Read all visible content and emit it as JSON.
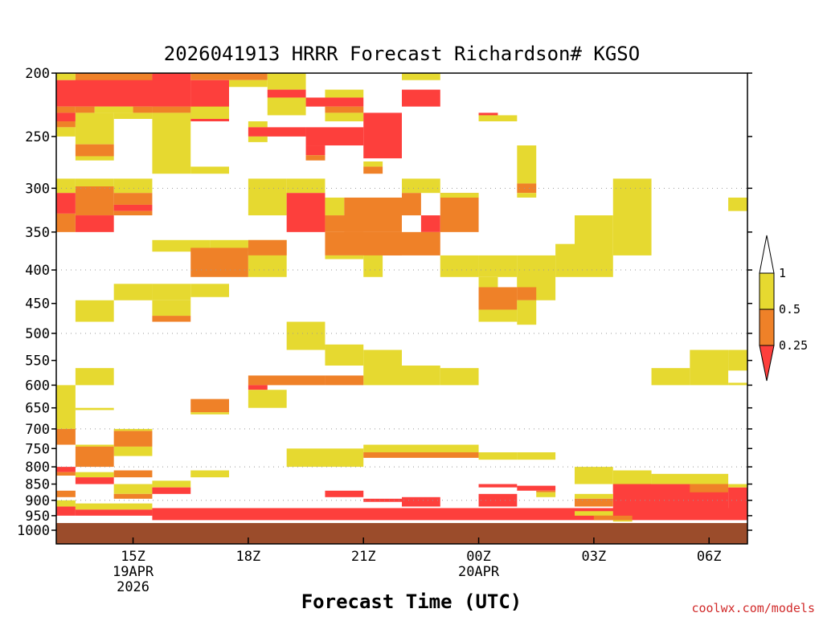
{
  "chart_data": {
    "type": "heatmap",
    "title": "2026041913 HRRR Forecast Richardson# KGSO",
    "xlabel": "Forecast Time (UTC)",
    "ylabel": "",
    "credit": "coolwx.com/models",
    "y_scale": "log (pressure, hPa), inverted",
    "ylim": [
      1000,
      200
    ],
    "y_ticks": [
      200,
      250,
      300,
      350,
      400,
      450,
      500,
      550,
      600,
      650,
      700,
      750,
      800,
      850,
      900,
      950,
      1000
    ],
    "y_gridlines": [
      300,
      400,
      500,
      700,
      800,
      900
    ],
    "x_hours_range": [
      13,
      31
    ],
    "x_ticks": [
      {
        "hour": 15,
        "lines": [
          "15Z",
          "19APR",
          "2026"
        ]
      },
      {
        "hour": 18,
        "lines": [
          "18Z"
        ]
      },
      {
        "hour": 21,
        "lines": [
          "21Z"
        ]
      },
      {
        "hour": 24,
        "lines": [
          "00Z",
          "20APR"
        ]
      },
      {
        "hour": 27,
        "lines": [
          "03Z"
        ]
      },
      {
        "hour": 30,
        "lines": [
          "06Z"
        ]
      }
    ],
    "colorbar": {
      "labels": [
        "1",
        "0.5",
        "0.25"
      ],
      "bins": [
        {
          "range": "0.5-1",
          "color": "#e6d930"
        },
        {
          "range": "0.25-0.5",
          "color": "#ef8128"
        },
        {
          "range": "<0.25",
          "color": "#fd3f3c"
        }
      ]
    },
    "colors": {
      "Y": "#e6d930",
      "O": "#ef8128",
      "R": "#fd3f3c",
      "G": "#9b4c2b"
    },
    "surface_level_hPa": 975,
    "cells": [
      [
        "Y",
        13,
        13.5,
        200,
        205
      ],
      [
        "O",
        13.5,
        15.5,
        200,
        212
      ],
      [
        "R",
        15.5,
        16.5,
        200,
        225
      ],
      [
        "O",
        16.5,
        17.5,
        200,
        205
      ],
      [
        "O",
        17.5,
        18.5,
        200,
        205
      ],
      [
        "Y",
        18.5,
        19.5,
        200,
        212
      ],
      [
        "Y",
        20,
        21,
        212,
        218
      ],
      [
        "Y",
        22,
        23,
        200,
        205
      ],
      [
        "R",
        13,
        16.5,
        205,
        225
      ],
      [
        "R",
        16.5,
        17.5,
        205,
        237
      ],
      [
        "Y",
        17.5,
        18.5,
        205,
        210
      ],
      [
        "R",
        18.5,
        19.5,
        212,
        218
      ],
      [
        "R",
        19.5,
        21,
        218,
        225
      ],
      [
        "R",
        22,
        23,
        212,
        225
      ],
      [
        "O",
        13,
        13.5,
        225,
        230
      ],
      [
        "O",
        13.5,
        14,
        225,
        230
      ],
      [
        "Y",
        14,
        15,
        225,
        230
      ],
      [
        "O",
        15,
        15.5,
        225,
        230
      ],
      [
        "O",
        15.5,
        16.5,
        225,
        230
      ],
      [
        "Y",
        16.5,
        17.5,
        225,
        235
      ],
      [
        "Y",
        18.5,
        19.5,
        218,
        232
      ],
      [
        "O",
        20,
        21,
        225,
        230
      ],
      [
        "Y",
        20,
        21,
        230,
        237
      ],
      [
        "R",
        21,
        22,
        230,
        270
      ],
      [
        "R",
        24,
        24.5,
        230,
        232
      ],
      [
        "Y",
        24,
        25,
        232,
        237
      ],
      [
        "R",
        13,
        13.5,
        230,
        237
      ],
      [
        "O",
        13,
        13.5,
        237,
        242
      ],
      [
        "Y",
        13,
        13.5,
        242,
        250
      ],
      [
        "Y",
        13.5,
        14.5,
        230,
        257
      ],
      [
        "O",
        13.5,
        14.5,
        257,
        268
      ],
      [
        "Y",
        13.5,
        14.5,
        268,
        272
      ],
      [
        "Y",
        14.5,
        15.5,
        230,
        235
      ],
      [
        "Y",
        15.5,
        16.5,
        230,
        285
      ],
      [
        "Y",
        16.5,
        17.5,
        278,
        285
      ],
      [
        "Y",
        18,
        18.5,
        237,
        242
      ],
      [
        "R",
        18,
        19.5,
        242,
        250
      ],
      [
        "Y",
        18,
        18.5,
        250,
        255
      ],
      [
        "R",
        19.5,
        21,
        242,
        258
      ],
      [
        "R",
        19.5,
        20,
        258,
        267
      ],
      [
        "O",
        19.5,
        20,
        267,
        272
      ],
      [
        "Y",
        21,
        21.5,
        273,
        278
      ],
      [
        "O",
        21,
        21.5,
        278,
        285
      ],
      [
        "Y",
        25,
        25.5,
        258,
        295
      ],
      [
        "O",
        25,
        25.5,
        295,
        305
      ],
      [
        "Y",
        25,
        25.5,
        305,
        310
      ],
      [
        "Y",
        13,
        13.5,
        290,
        305
      ],
      [
        "Y",
        13.5,
        14.5,
        290,
        298
      ],
      [
        "O",
        13.5,
        14.5,
        298,
        330
      ],
      [
        "R",
        13.5,
        14.5,
        330,
        350
      ],
      [
        "Y",
        14.5,
        15.5,
        290,
        305
      ],
      [
        "O",
        14.5,
        15.5,
        305,
        318
      ],
      [
        "R",
        14.5,
        15.5,
        318,
        325
      ],
      [
        "O",
        14.5,
        15.5,
        325,
        330
      ],
      [
        "R",
        13,
        13.5,
        305,
        328
      ],
      [
        "O",
        13,
        13.5,
        328,
        350
      ],
      [
        "Y",
        18,
        19,
        290,
        330
      ],
      [
        "Y",
        19,
        20,
        290,
        305
      ],
      [
        "R",
        19,
        20,
        305,
        350
      ],
      [
        "Y",
        20,
        20.5,
        310,
        330
      ],
      [
        "O",
        20,
        21,
        330,
        350
      ],
      [
        "O",
        20.5,
        22,
        310,
        350
      ],
      [
        "Y",
        22,
        23,
        290,
        305
      ],
      [
        "O",
        22,
        22.5,
        305,
        330
      ],
      [
        "R",
        22.5,
        23,
        330,
        350
      ],
      [
        "O",
        23,
        24,
        305,
        350
      ],
      [
        "Y",
        23,
        24,
        305,
        310
      ],
      [
        "Y",
        27.5,
        28.5,
        290,
        380
      ],
      [
        "Y",
        26.5,
        27.5,
        330,
        410
      ],
      [
        "Y",
        30.5,
        31,
        310,
        325
      ],
      [
        "Y",
        15.5,
        17,
        360,
        375
      ],
      [
        "Y",
        17,
        18,
        360,
        375
      ],
      [
        "Y",
        18,
        19,
        360,
        380
      ],
      [
        "O",
        18,
        19,
        360,
        380
      ],
      [
        "O",
        16.5,
        18,
        370,
        410
      ],
      [
        "Y",
        18,
        19,
        380,
        410
      ],
      [
        "O",
        20,
        22,
        350,
        380
      ],
      [
        "Y",
        20,
        21,
        380,
        385
      ],
      [
        "O",
        21,
        23,
        350,
        380
      ],
      [
        "Y",
        21,
        21.5,
        380,
        410
      ],
      [
        "Y",
        23,
        24,
        380,
        410
      ],
      [
        "Y",
        24,
        25,
        380,
        410
      ],
      [
        "Y",
        25,
        26,
        380,
        445
      ],
      [
        "Y",
        26,
        26.5,
        365,
        410
      ],
      [
        "Y",
        24,
        24.5,
        410,
        425
      ],
      [
        "O",
        24,
        25,
        425,
        460
      ],
      [
        "Y",
        24,
        25,
        460,
        480
      ],
      [
        "Y",
        25,
        25.5,
        410,
        425
      ],
      [
        "O",
        25,
        25.5,
        425,
        445
      ],
      [
        "Y",
        25,
        25.5,
        445,
        485
      ],
      [
        "Y",
        14.5,
        15.5,
        420,
        445
      ],
      [
        "Y",
        15.5,
        16.5,
        420,
        445
      ],
      [
        "Y",
        16.5,
        17.5,
        420,
        440
      ],
      [
        "Y",
        13.5,
        14.5,
        445,
        480
      ],
      [
        "Y",
        15.5,
        16.5,
        445,
        470
      ],
      [
        "O",
        15.5,
        16.5,
        470,
        480
      ],
      [
        "Y",
        19,
        20,
        480,
        530
      ],
      [
        "Y",
        20,
        21,
        520,
        560
      ],
      [
        "Y",
        21,
        22,
        530,
        600
      ],
      [
        "Y",
        22,
        23,
        560,
        600
      ],
      [
        "Y",
        23,
        24,
        565,
        600
      ],
      [
        "O",
        18,
        20,
        580,
        600
      ],
      [
        "O",
        20,
        21,
        580,
        600
      ],
      [
        "R",
        18,
        18.5,
        600,
        610
      ],
      [
        "Y",
        18,
        19,
        610,
        650
      ],
      [
        "Y",
        13.5,
        14.5,
        565,
        600
      ],
      [
        "Y",
        13,
        13.5,
        600,
        700
      ],
      [
        "O",
        13,
        13.5,
        700,
        740
      ],
      [
        "Y",
        13.5,
        14.5,
        650,
        655
      ],
      [
        "Y",
        14.5,
        15.5,
        700,
        705
      ],
      [
        "O",
        14.5,
        15.5,
        705,
        745
      ],
      [
        "Y",
        14.5,
        15.5,
        745,
        770
      ],
      [
        "O",
        16.5,
        17.5,
        630,
        660
      ],
      [
        "Y",
        16.5,
        17.5,
        660,
        665
      ],
      [
        "Y",
        28.5,
        29.5,
        565,
        600
      ],
      [
        "Y",
        29.5,
        30.5,
        530,
        600
      ],
      [
        "Y",
        30.5,
        31,
        530,
        570
      ],
      [
        "Y",
        30.5,
        31,
        595,
        600
      ],
      [
        "Y",
        13.5,
        14.5,
        740,
        745
      ],
      [
        "O",
        13.5,
        14.5,
        745,
        800
      ],
      [
        "Y",
        19,
        21,
        750,
        800
      ],
      [
        "Y",
        21,
        24,
        740,
        760
      ],
      [
        "O",
        21,
        24,
        760,
        775
      ],
      [
        "Y",
        24,
        25,
        760,
        780
      ],
      [
        "Y",
        25,
        26,
        760,
        780
      ],
      [
        "R",
        13,
        13.5,
        800,
        815
      ],
      [
        "O",
        13,
        13.5,
        815,
        825
      ],
      [
        "Y",
        13.5,
        14.5,
        815,
        830
      ],
      [
        "R",
        13.5,
        14.5,
        830,
        850
      ],
      [
        "O",
        14.5,
        15.5,
        810,
        830
      ],
      [
        "Y",
        16.5,
        17.5,
        810,
        830
      ],
      [
        "Y",
        14.5,
        15.5,
        850,
        880
      ],
      [
        "O",
        14.5,
        15.5,
        880,
        895
      ],
      [
        "Y",
        15.5,
        16.5,
        840,
        860
      ],
      [
        "R",
        15.5,
        16.5,
        860,
        880
      ],
      [
        "Y",
        26.5,
        27.5,
        800,
        850
      ],
      [
        "Y",
        27.5,
        28.5,
        810,
        850
      ],
      [
        "O",
        27.5,
        28.5,
        850,
        875
      ],
      [
        "R",
        27.5,
        30.5,
        850,
        950
      ],
      [
        "Y",
        28.5,
        30.5,
        820,
        850
      ],
      [
        "O",
        29.5,
        30.5,
        850,
        875
      ],
      [
        "R",
        30.5,
        31,
        860,
        950
      ],
      [
        "Y",
        30.5,
        31,
        850,
        860
      ],
      [
        "R",
        24,
        25,
        850,
        860
      ],
      [
        "R",
        25,
        26,
        855,
        870
      ],
      [
        "O",
        25.5,
        26,
        870,
        875
      ],
      [
        "Y",
        25.5,
        26,
        875,
        890
      ],
      [
        "R",
        20,
        21,
        870,
        890
      ],
      [
        "O",
        13,
        13.5,
        870,
        890
      ],
      [
        "Y",
        13,
        13.5,
        900,
        920
      ],
      [
        "R",
        13,
        13.5,
        920,
        950
      ],
      [
        "Y",
        13.5,
        15.5,
        910,
        930
      ],
      [
        "R",
        13.5,
        15.5,
        930,
        950
      ],
      [
        "R",
        15.5,
        31,
        925,
        965
      ],
      [
        "R",
        21,
        22,
        895,
        905
      ],
      [
        "R",
        22,
        23,
        890,
        920
      ],
      [
        "R",
        24,
        25,
        880,
        920
      ],
      [
        "Y",
        26.5,
        27.5,
        880,
        895
      ],
      [
        "O",
        26.5,
        27.5,
        895,
        920
      ],
      [
        "Y",
        26.5,
        27.5,
        935,
        950
      ],
      [
        "O",
        27,
        28,
        950,
        965
      ],
      [
        "Y",
        27.5,
        28,
        965,
        970
      ],
      [
        "G",
        13,
        31,
        975,
        1050
      ]
    ]
  }
}
